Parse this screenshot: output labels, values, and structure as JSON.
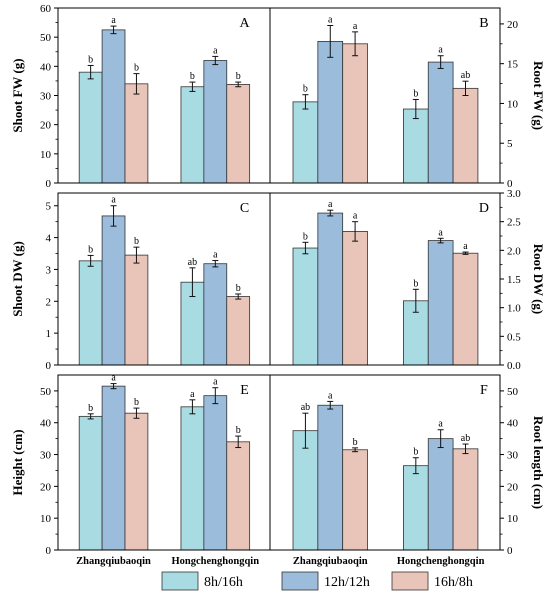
{
  "chart_data": [
    {
      "panel": "A",
      "type": "bar",
      "ylabel": "Shoot FW (g)",
      "ylim": [
        0,
        60
      ],
      "yticks": [
        0,
        10,
        20,
        30,
        40,
        50,
        60
      ],
      "categories": [
        "Zhangqiubaoqin",
        "Hongchenghongqin"
      ],
      "series": [
        {
          "name": "8h/16h",
          "values": [
            38.0,
            33.0
          ],
          "errors": [
            2.3,
            1.6
          ],
          "letters": [
            "b",
            "b"
          ]
        },
        {
          "name": "12h/12h",
          "values": [
            52.5,
            42.0
          ],
          "errors": [
            1.3,
            1.4
          ],
          "letters": [
            "a",
            "a"
          ]
        },
        {
          "name": "16h/8h",
          "values": [
            34.0,
            33.8
          ],
          "errors": [
            3.5,
            0.8
          ],
          "letters": [
            "b",
            "b"
          ]
        }
      ]
    },
    {
      "panel": "B",
      "type": "bar",
      "ylabel": "Root FW (g)",
      "ylim": [
        0,
        22
      ],
      "yticks": [
        0,
        5,
        10,
        15,
        20
      ],
      "categories": [
        "Zhangqiubaoqin",
        "Hongchenghongqin"
      ],
      "series": [
        {
          "name": "8h/16h",
          "values": [
            10.2,
            9.3
          ],
          "errors": [
            0.9,
            1.2
          ],
          "letters": [
            "b",
            "b"
          ]
        },
        {
          "name": "12h/12h",
          "values": [
            17.8,
            15.2
          ],
          "errors": [
            2.0,
            0.8
          ],
          "letters": [
            "a",
            "a"
          ]
        },
        {
          "name": "16h/8h",
          "values": [
            17.5,
            11.9
          ],
          "errors": [
            1.5,
            0.9
          ],
          "letters": [
            "a",
            "ab"
          ]
        }
      ]
    },
    {
      "panel": "C",
      "type": "bar",
      "ylabel": "Shoot DW (g)",
      "ylim": [
        0,
        5.4
      ],
      "yticks": [
        0,
        1,
        2,
        3,
        4,
        5
      ],
      "categories": [
        "Zhangqiubaoqin",
        "Hongchenghongqin"
      ],
      "series": [
        {
          "name": "8h/16h",
          "values": [
            3.27,
            2.6
          ],
          "errors": [
            0.17,
            0.45
          ],
          "letters": [
            "b",
            "ab"
          ]
        },
        {
          "name": "12h/12h",
          "values": [
            4.68,
            3.18
          ],
          "errors": [
            0.32,
            0.1
          ],
          "letters": [
            "a",
            "a"
          ]
        },
        {
          "name": "16h/8h",
          "values": [
            3.45,
            2.15
          ],
          "errors": [
            0.25,
            0.08
          ],
          "letters": [
            "b",
            "b"
          ]
        }
      ]
    },
    {
      "panel": "D",
      "type": "bar",
      "ylabel": "Root DW (g)",
      "ylim": [
        0,
        3.0
      ],
      "yticks": [
        0.0,
        0.5,
        1.0,
        1.5,
        2.0,
        2.5,
        3.0
      ],
      "categories": [
        "Zhangqiubaoqin",
        "Hongchenghongqin"
      ],
      "series": [
        {
          "name": "8h/16h",
          "values": [
            2.04,
            1.12
          ],
          "errors": [
            0.1,
            0.2
          ],
          "letters": [
            "b",
            "b"
          ]
        },
        {
          "name": "12h/12h",
          "values": [
            2.65,
            2.17
          ],
          "errors": [
            0.05,
            0.04
          ],
          "letters": [
            "a",
            "a"
          ]
        },
        {
          "name": "16h/8h",
          "values": [
            2.33,
            1.95
          ],
          "errors": [
            0.17,
            0.02
          ],
          "letters": [
            "a",
            "a"
          ]
        }
      ]
    },
    {
      "panel": "E",
      "type": "bar",
      "ylabel": "Height (cm)",
      "ylim": [
        0,
        55
      ],
      "yticks": [
        0,
        10,
        20,
        30,
        40,
        50
      ],
      "categories": [
        "Zhangqiubaoqin",
        "Hongchenghongqin"
      ],
      "series": [
        {
          "name": "8h/16h",
          "values": [
            42.0,
            45.0
          ],
          "errors": [
            0.8,
            2.2
          ],
          "letters": [
            "b",
            "a"
          ]
        },
        {
          "name": "12h/12h",
          "values": [
            51.5,
            48.5
          ],
          "errors": [
            0.8,
            2.5
          ],
          "letters": [
            "a",
            "a"
          ]
        },
        {
          "name": "16h/8h",
          "values": [
            43.0,
            34.0
          ],
          "errors": [
            1.6,
            1.8
          ],
          "letters": [
            "b",
            "b"
          ]
        }
      ]
    },
    {
      "panel": "F",
      "type": "bar",
      "ylabel": "Root length (cm)",
      "ylim": [
        0,
        55
      ],
      "yticks": [
        0,
        10,
        20,
        30,
        40,
        50
      ],
      "categories": [
        "Zhangqiubaoqin",
        "Hongchenghongqin"
      ],
      "series": [
        {
          "name": "8h/16h",
          "values": [
            37.5,
            26.5
          ],
          "errors": [
            5.5,
            2.5
          ],
          "letters": [
            "ab",
            "b"
          ]
        },
        {
          "name": "12h/12h",
          "values": [
            45.5,
            35.0
          ],
          "errors": [
            1.2,
            2.8
          ],
          "letters": [
            "a",
            "a"
          ]
        },
        {
          "name": "16h/8h",
          "values": [
            31.5,
            31.8
          ],
          "errors": [
            0.6,
            1.5
          ],
          "letters": [
            "b",
            "ab"
          ]
        }
      ]
    }
  ],
  "legend": {
    "placement": "bottom-center",
    "items": [
      {
        "label": "8h/16h",
        "color": "#a8dce2"
      },
      {
        "label": "12h/12h",
        "color": "#9cbcdc"
      },
      {
        "label": "16h/8h",
        "color": "#e9c4b8"
      }
    ]
  },
  "colors": [
    "#a8dce2",
    "#9cbcdc",
    "#e9c4b8"
  ]
}
